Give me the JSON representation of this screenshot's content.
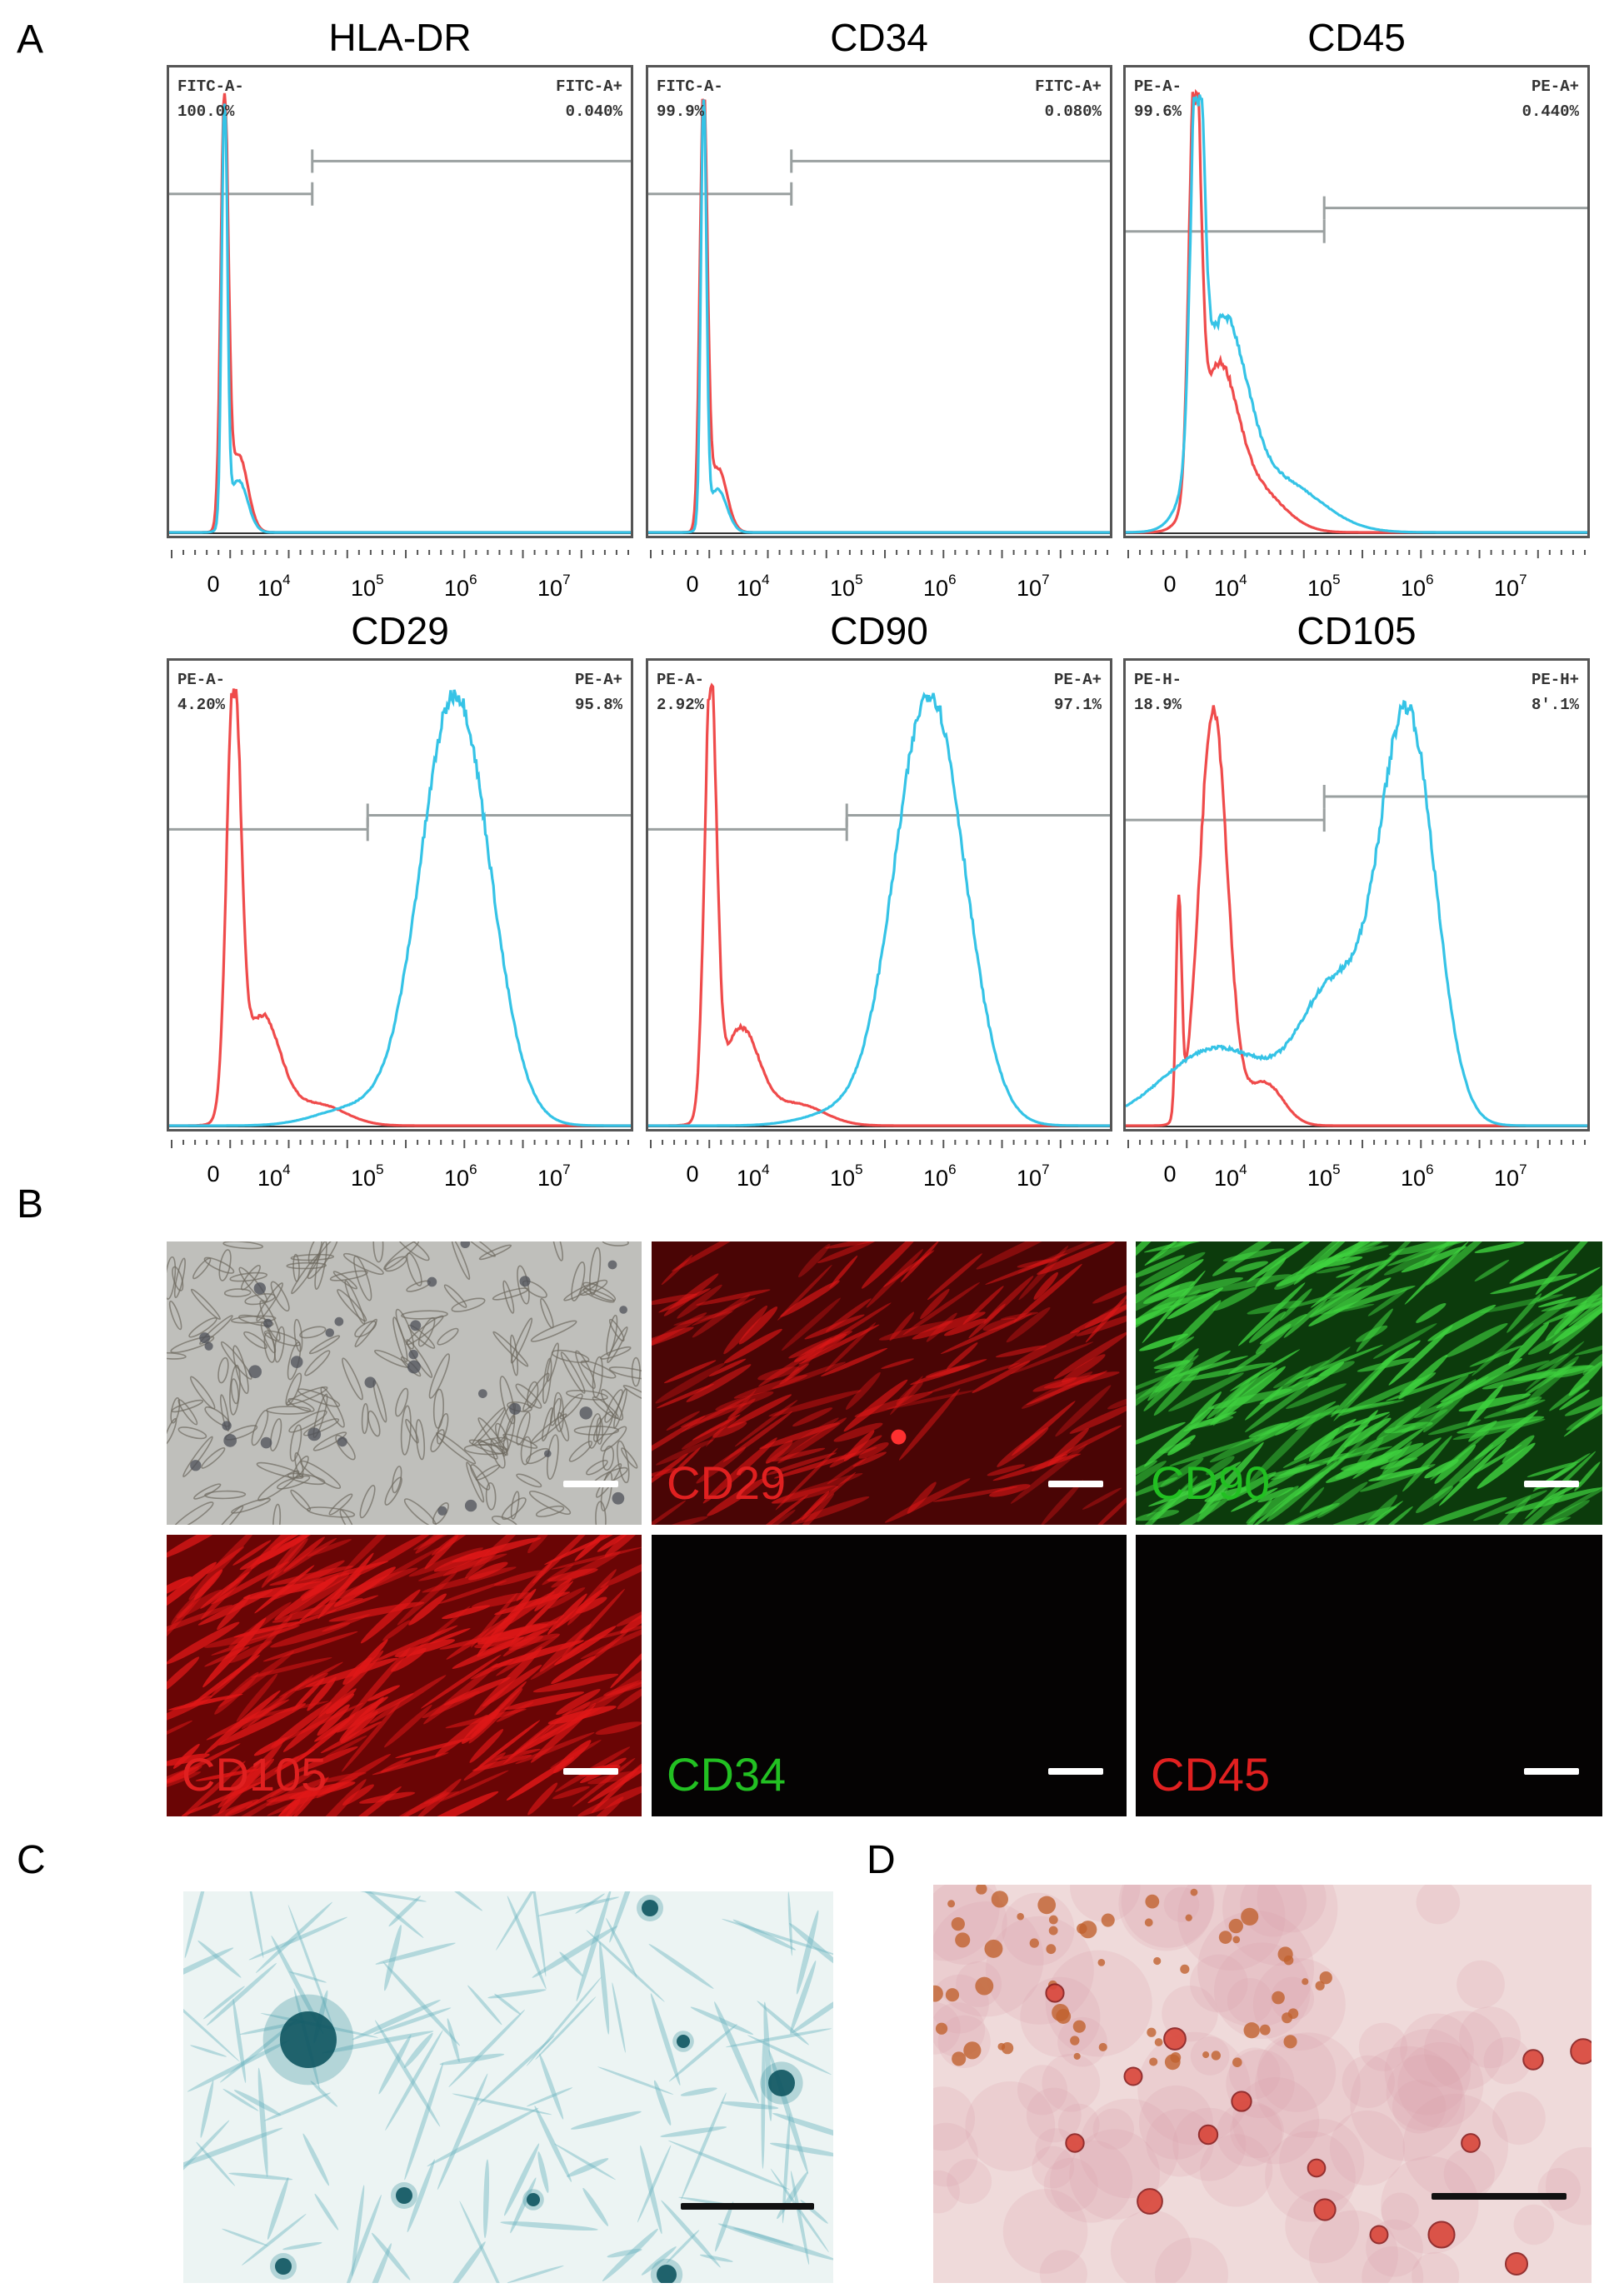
{
  "panels": {
    "a": "A",
    "b": "B",
    "c": "C",
    "d": "D"
  },
  "histograms": [
    {
      "title": "HLA-DR",
      "neg_label": "FITC-A-",
      "neg_value": "100.0%",
      "pos_label": "FITC-A+",
      "pos_value": "0.040%",
      "ticks": [
        "0",
        "10^4",
        "10^5",
        "10^6",
        "10^7"
      ]
    },
    {
      "title": "CD34",
      "neg_label": "FITC-A-",
      "neg_value": "99.9%",
      "pos_label": "FITC-A+",
      "pos_value": "0.080%",
      "ticks": [
        "0",
        "10^4",
        "10^5",
        "10^6",
        "10^7"
      ]
    },
    {
      "title": "CD45",
      "neg_label": "PE-A-",
      "neg_value": "99.6%",
      "pos_label": "PE-A+",
      "pos_value": "0.440%",
      "ticks": [
        "0",
        "10^4",
        "10^5",
        "10^6",
        "10^7"
      ]
    },
    {
      "title": "CD29",
      "neg_label": "PE-A-",
      "neg_value": "4.20%",
      "pos_label": "PE-A+",
      "pos_value": "95.8%",
      "ticks": [
        "0",
        "10^4",
        "10^5",
        "10^6",
        "10^7"
      ]
    },
    {
      "title": "CD90",
      "neg_label": "PE-A-",
      "neg_value": "2.92%",
      "pos_label": "PE-A+",
      "pos_value": "97.1%",
      "ticks": [
        "0",
        "10^4",
        "10^5",
        "10^6",
        "10^7"
      ]
    },
    {
      "title": "CD105",
      "neg_label": "PE-H-",
      "neg_value": "18.9%",
      "pos_label": "PE-H+",
      "pos_value": "8'.1%",
      "ticks": [
        "0",
        "10^4",
        "10^5",
        "10^6",
        "10^7"
      ]
    }
  ],
  "chart_data": [
    {
      "type": "area",
      "title": "HLA-DR",
      "x_scale": "log",
      "xlim": [
        "0",
        "10^7"
      ],
      "grid": false,
      "series": [
        {
          "color": "#ef4b4b"
        },
        {
          "color": "#35c3e6"
        }
      ],
      "gates": {
        "negative": "100.0%",
        "positive": "0.040%"
      }
    },
    {
      "type": "area",
      "title": "CD34",
      "x_scale": "log",
      "xlim": [
        "0",
        "10^7"
      ],
      "grid": false,
      "series": [
        {
          "color": "#ef4b4b"
        },
        {
          "color": "#35c3e6"
        }
      ],
      "gates": {
        "negative": "99.9%",
        "positive": "0.080%"
      }
    },
    {
      "type": "area",
      "title": "CD45",
      "x_scale": "log",
      "xlim": [
        "0",
        "10^7"
      ],
      "grid": false,
      "series": [
        {
          "color": "#ef4b4b"
        },
        {
          "color": "#35c3e6"
        }
      ],
      "gates": {
        "negative": "99.6%",
        "positive": "0.440%"
      }
    },
    {
      "type": "area",
      "title": "CD29",
      "x_scale": "log",
      "xlim": [
        "0",
        "10^7"
      ],
      "grid": false,
      "series": [
        {
          "color": "#ef4b4b"
        },
        {
          "color": "#35c3e6"
        }
      ],
      "gates": {
        "negative": "4.20%",
        "positive": "95.8%"
      }
    },
    {
      "type": "area",
      "title": "CD90",
      "x_scale": "log",
      "xlim": [
        "0",
        "10^7"
      ],
      "grid": false,
      "series": [
        {
          "color": "#ef4b4b"
        },
        {
          "color": "#35c3e6"
        }
      ],
      "gates": {
        "negative": "2.92%",
        "positive": "97.1%"
      }
    },
    {
      "type": "area",
      "title": "CD105",
      "x_scale": "log",
      "xlim": [
        "0",
        "10^7"
      ],
      "grid": false,
      "series": [
        {
          "color": "#ef4b4b"
        },
        {
          "color": "#35c3e6"
        }
      ],
      "gates": {
        "negative": "18.9%",
        "positive": "8'.1%"
      }
    }
  ],
  "fluorescence": [
    {
      "label": "",
      "kind": "brightfield"
    },
    {
      "label": "CD29",
      "kind": "red",
      "label_color": "#e02020"
    },
    {
      "label": "CD90",
      "kind": "green",
      "label_color": "#22c022"
    },
    {
      "label": "CD105",
      "kind": "red-strong",
      "label_color": "#e02020"
    },
    {
      "label": "CD34",
      "kind": "dark",
      "label_color": "#22c022"
    },
    {
      "label": "CD45",
      "kind": "dark",
      "label_color": "#e02020"
    }
  ],
  "colors": {
    "red_trace": "#ef4b4b",
    "blue_trace": "#35c3e6",
    "gate_line": "#9aa0a0"
  }
}
